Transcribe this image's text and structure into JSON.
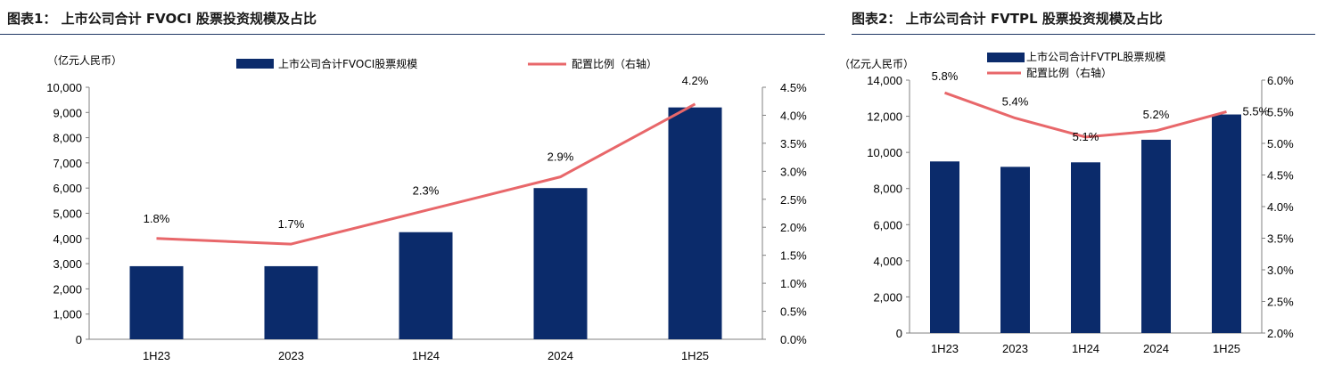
{
  "chart_data": [
    {
      "type": "bar",
      "title": "图表1： 上市公司合计 FVOCI 股票投资规模及占比",
      "unit_label": "（亿元人民币）",
      "categories": [
        "1H23",
        "2023",
        "1H24",
        "2024",
        "1H25"
      ],
      "series": [
        {
          "name": "上市公司合计FVOCI股票规模",
          "type": "bar",
          "axis": "left",
          "values": [
            2900,
            2900,
            4250,
            6000,
            9200
          ],
          "color": "#0b2b6b"
        },
        {
          "name": "配置比例（右轴）",
          "type": "line",
          "axis": "right",
          "values": [
            1.8,
            1.7,
            2.3,
            2.9,
            4.2
          ],
          "color": "#e8676a"
        }
      ],
      "data_labels": [
        "1.8%",
        "1.7%",
        "2.3%",
        "2.9%",
        "4.2%"
      ],
      "ylim": [
        0,
        10000
      ],
      "yticks": [
        "0",
        "1,000",
        "2,000",
        "3,000",
        "4,000",
        "5,000",
        "6,000",
        "7,000",
        "8,000",
        "9,000",
        "10,000"
      ],
      "y2lim": [
        0,
        4.5
      ],
      "y2ticks": [
        "0.0%",
        "0.5%",
        "1.0%",
        "1.5%",
        "2.0%",
        "2.5%",
        "3.0%",
        "3.5%",
        "4.0%",
        "4.5%"
      ],
      "legend": "top",
      "grid": false
    },
    {
      "type": "bar",
      "title": "图表2： 上市公司合计 FVTPL 股票投资规模及占比",
      "unit_label": "（亿元人民币）",
      "categories": [
        "1H23",
        "2023",
        "1H24",
        "2024",
        "1H25"
      ],
      "series": [
        {
          "name": "上市公司合计FVTPL股票规模",
          "type": "bar",
          "axis": "left",
          "values": [
            9500,
            9200,
            9450,
            10700,
            12100
          ],
          "color": "#0b2b6b"
        },
        {
          "name": "配置比例（右轴）",
          "type": "line",
          "axis": "right",
          "values": [
            5.8,
            5.4,
            5.1,
            5.2,
            5.5
          ],
          "color": "#e8676a"
        }
      ],
      "data_labels": [
        "5.8%",
        "5.4%",
        "5.1%",
        "5.2%",
        "5.5%"
      ],
      "ylim": [
        0,
        14000
      ],
      "yticks": [
        "0",
        "2,000",
        "4,000",
        "6,000",
        "8,000",
        "10,000",
        "12,000",
        "14,000"
      ],
      "y2lim": [
        2.0,
        6.0
      ],
      "y2ticks": [
        "2.0%",
        "2.5%",
        "3.0%",
        "3.5%",
        "4.0%",
        "4.5%",
        "5.0%",
        "5.5%",
        "6.0%"
      ],
      "legend": "top-left",
      "grid": false
    }
  ]
}
